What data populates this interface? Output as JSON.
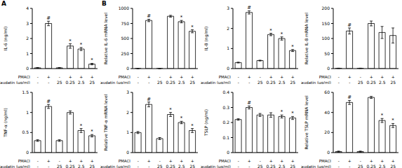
{
  "chart_data": [
    {
      "type": "bar",
      "panel": "A",
      "y_label": "IL-6 (ng/ml)",
      "color": "#ffffff",
      "values": [
        0.05,
        3.0,
        0.05,
        1.5,
        1.3,
        0.3
      ],
      "errors": [
        0.02,
        0.15,
        0.02,
        0.15,
        0.1,
        0.05
      ],
      "annotations": [
        null,
        "#",
        null,
        "*",
        "*",
        "*"
      ],
      "ylim": [
        0,
        4
      ],
      "yticks": [
        0,
        1,
        2,
        3,
        4
      ],
      "x_rows": [
        {
          "label": "PMACI",
          "values": [
            "-",
            "+",
            "-",
            "+",
            "+",
            "+"
          ]
        },
        {
          "label": "Caudatin (μg/ml)",
          "values": [
            "-",
            "-",
            "25",
            "0.25",
            "2.5",
            "25"
          ]
        }
      ]
    },
    {
      "type": "bar",
      "panel": "B",
      "y_label": "Relative IL-6 mRNA level",
      "color": "#ffffff",
      "values": [
        1,
        800,
        1,
        870,
        780,
        620
      ],
      "errors": [
        1,
        20,
        1,
        15,
        20,
        25
      ],
      "annotations": [
        null,
        "#",
        null,
        null,
        "*",
        "*"
      ],
      "ylim": [
        0,
        1000
      ],
      "yticks": [
        0,
        250,
        500,
        750,
        1000
      ],
      "x_rows": [
        {
          "label": "PMACI",
          "values": [
            "-",
            "+",
            "-",
            "+",
            "+",
            "+"
          ]
        },
        {
          "label": "Caudatin (μg/ml)",
          "values": [
            "-",
            "-",
            "25",
            "0.25",
            "2.5",
            "25"
          ]
        }
      ]
    },
    {
      "type": "bar",
      "y_label": "IL-8 (ng/ml)",
      "color": "#ffffff",
      "values": [
        0.3,
        2.8,
        0.4,
        1.7,
        1.5,
        0.9
      ],
      "errors": [
        0.02,
        0.08,
        0.02,
        0.06,
        0.08,
        0.05
      ],
      "annotations": [
        null,
        "#",
        null,
        "*",
        "*",
        "*"
      ],
      "ylim": [
        0,
        3
      ],
      "yticks": [
        0,
        1,
        2,
        3
      ],
      "x_rows": [
        {
          "label": "PMACI",
          "values": [
            "-",
            "+",
            "-",
            "+",
            "+",
            "+"
          ]
        },
        {
          "label": "Caudatin (μg/ml)",
          "values": [
            "-",
            "-",
            "25",
            "0.25",
            "2.5",
            "25"
          ]
        }
      ]
    },
    {
      "type": "bar",
      "y_label": "Relative IL-8 mRNA level",
      "color": "#ffffff",
      "values": [
        1,
        125,
        1,
        150,
        120,
        110
      ],
      "errors": [
        0.5,
        10,
        0.5,
        8,
        20,
        25
      ],
      "annotations": [
        null,
        "#",
        null,
        null,
        null,
        null
      ],
      "ylim": [
        0,
        200
      ],
      "yticks": [
        0,
        50,
        100,
        150,
        200
      ],
      "x_rows": [
        {
          "label": "PMACI",
          "values": [
            "-",
            "+",
            "-",
            "+",
            "+",
            "+"
          ]
        },
        {
          "label": "Caudatin (μg/ml)",
          "values": [
            "-",
            "-",
            "25",
            "0.25",
            "2.5",
            "25"
          ]
        }
      ]
    },
    {
      "type": "bar",
      "y_label": "TNF-α (ng/ml)",
      "color": "#ffffff",
      "values": [
        0.3,
        1.15,
        0.3,
        1.0,
        0.55,
        0.42
      ],
      "errors": [
        0.02,
        0.05,
        0.02,
        0.04,
        0.05,
        0.03
      ],
      "annotations": [
        null,
        "#",
        null,
        null,
        "*",
        "*"
      ],
      "ylim": [
        0,
        1.5
      ],
      "yticks": [
        0,
        0.5,
        1,
        1.5
      ],
      "x_rows": [
        {
          "label": "PMACI",
          "values": [
            "-",
            "+",
            "-",
            "+",
            "+",
            "+"
          ]
        },
        {
          "label": "Caudatin (μg/ml)",
          "values": [
            "-",
            "-",
            "25",
            "0.25",
            "2.5",
            "25"
          ]
        }
      ]
    },
    {
      "type": "bar",
      "y_label": "Relative TNF-α mRNA level",
      "color": "#ffffff",
      "values": [
        1,
        2.4,
        0.7,
        1.9,
        1.5,
        1.1
      ],
      "errors": [
        0.05,
        0.12,
        0.05,
        0.1,
        0.06,
        0.1
      ],
      "annotations": [
        null,
        "#",
        null,
        "*",
        "*",
        "*"
      ],
      "ylim": [
        0,
        3
      ],
      "yticks": [
        0,
        1,
        2,
        3
      ],
      "x_rows": [
        {
          "label": "PMACI",
          "values": [
            "-",
            "+",
            "-",
            "+",
            "+",
            "+"
          ]
        },
        {
          "label": "Caudatin (μg/ml)",
          "values": [
            "-",
            "-",
            "25",
            "0.25",
            "2.5",
            "25"
          ]
        }
      ]
    },
    {
      "type": "bar",
      "y_label": "TSLP (ng/ml)",
      "color": "#ffffff",
      "values": [
        0.22,
        0.3,
        0.25,
        0.25,
        0.24,
        0.23
      ],
      "errors": [
        0.005,
        0.01,
        0.01,
        0.015,
        0.01,
        0.01
      ],
      "annotations": [
        null,
        "#",
        null,
        null,
        "*",
        "*"
      ],
      "ylim": [
        0,
        0.4
      ],
      "yticks": [
        0,
        0.1,
        0.2,
        0.3,
        0.4
      ],
      "x_rows": [
        {
          "label": "PMACI",
          "values": [
            "-",
            "+",
            "-",
            "+",
            "+",
            "+"
          ]
        },
        {
          "label": "Caudatin (μg/ml)",
          "values": [
            "-",
            "-",
            "25",
            "0.25",
            "2.5",
            "25"
          ]
        }
      ]
    },
    {
      "type": "bar",
      "y_label": "Relative TSLP mRNA level",
      "color": "#ffffff",
      "values": [
        1,
        50,
        1,
        55,
        32,
        27
      ],
      "errors": [
        0.5,
        2,
        0.5,
        1,
        2,
        2
      ],
      "annotations": [
        null,
        "#",
        null,
        null,
        "*",
        "*"
      ],
      "ylim": [
        0,
        60
      ],
      "yticks": [
        0,
        20,
        40,
        60
      ],
      "x_rows": [
        {
          "label": "PMACI",
          "values": [
            "-",
            "+",
            "-",
            "+",
            "+",
            "+"
          ]
        },
        {
          "label": "Caudatin (μg/ml)",
          "values": [
            "-",
            "-",
            "25",
            "0.25",
            "2.5",
            "25"
          ]
        }
      ]
    }
  ]
}
